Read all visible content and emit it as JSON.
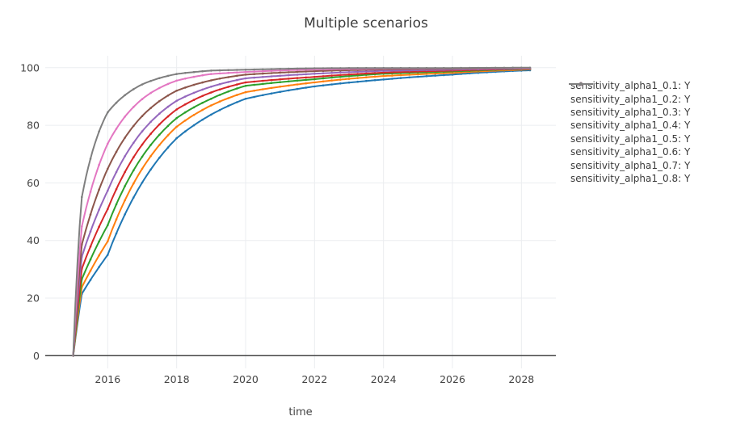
{
  "figure_title": "Multiple scenarios",
  "chart_data": {
    "type": "line",
    "title": "Multiple scenarios",
    "xlabel": "time",
    "ylabel": "",
    "grid": true,
    "legend_position": "right",
    "x_range": [
      2014.2,
      2029.0
    ],
    "y_range": [
      -4.1,
      103.9
    ],
    "x_ticks": [
      2016,
      2018,
      2020,
      2022,
      2024,
      2026,
      2028
    ],
    "y_ticks": [
      0,
      20,
      40,
      60,
      80,
      100
    ],
    "sample_times": [
      2015,
      2015.25,
      2015.5,
      2016,
      2017,
      2018,
      2019,
      2020,
      2022,
      2024,
      2026,
      2028,
      2028.25
    ],
    "series": [
      {
        "name": "sensitivity_alpha1_0.1: Y",
        "color": "#1f77b4",
        "values": [
          0,
          21.5,
          26.3,
          35.0,
          60.1,
          75.5,
          83.7,
          89.2,
          93.5,
          95.9,
          97.6,
          99.0,
          99.1
        ]
      },
      {
        "name": "sensitivity_alpha1_0.2: Y",
        "color": "#ff7f0e",
        "values": [
          0,
          23.8,
          29.5,
          39.7,
          64.9,
          79.5,
          86.9,
          91.5,
          94.9,
          97.1,
          98.2,
          99.3,
          99.4
        ]
      },
      {
        "name": "sensitivity_alpha1_0.3: Y",
        "color": "#2ca02c",
        "values": [
          0,
          26.6,
          33.4,
          45.3,
          69.1,
          82.5,
          89.2,
          93.7,
          96.0,
          97.9,
          98.7,
          99.5,
          99.5
        ]
      },
      {
        "name": "sensitivity_alpha1_0.4: Y",
        "color": "#d62728",
        "values": [
          0,
          30.2,
          37.9,
          50.9,
          73.3,
          85.5,
          91.4,
          94.9,
          96.8,
          98.3,
          99.0,
          99.6,
          99.6
        ]
      },
      {
        "name": "sensitivity_alpha1_0.5: Y",
        "color": "#9467bd",
        "values": [
          0,
          34.4,
          43.1,
          57.3,
          77.9,
          88.5,
          93.4,
          96.3,
          97.9,
          98.9,
          99.3,
          99.7,
          99.7
        ]
      },
      {
        "name": "sensitivity_alpha1_0.6: Y",
        "color": "#8c564b",
        "values": [
          0,
          38.6,
          49.0,
          64.9,
          83.2,
          92.0,
          95.6,
          97.6,
          98.8,
          99.4,
          99.6,
          99.8,
          99.8
        ]
      },
      {
        "name": "sensitivity_alpha1_0.7: Y",
        "color": "#e377c2",
        "values": [
          0,
          44.9,
          56.9,
          73.6,
          89.1,
          95.5,
          97.8,
          98.5,
          99.4,
          99.7,
          99.8,
          99.9,
          99.9
        ]
      },
      {
        "name": "sensitivity_alpha1_0.8: Y",
        "color": "#7f7f7f",
        "values": [
          0,
          55.1,
          68.4,
          84.5,
          94.2,
          97.8,
          99.0,
          99.3,
          99.8,
          99.9,
          99.9,
          100.0,
          100.0
        ]
      }
    ]
  },
  "style_colors": {
    "grid": "#ebedf0",
    "zeroline": "#444444",
    "tick_text": "#444444",
    "title_text": "#3d3d3d"
  }
}
